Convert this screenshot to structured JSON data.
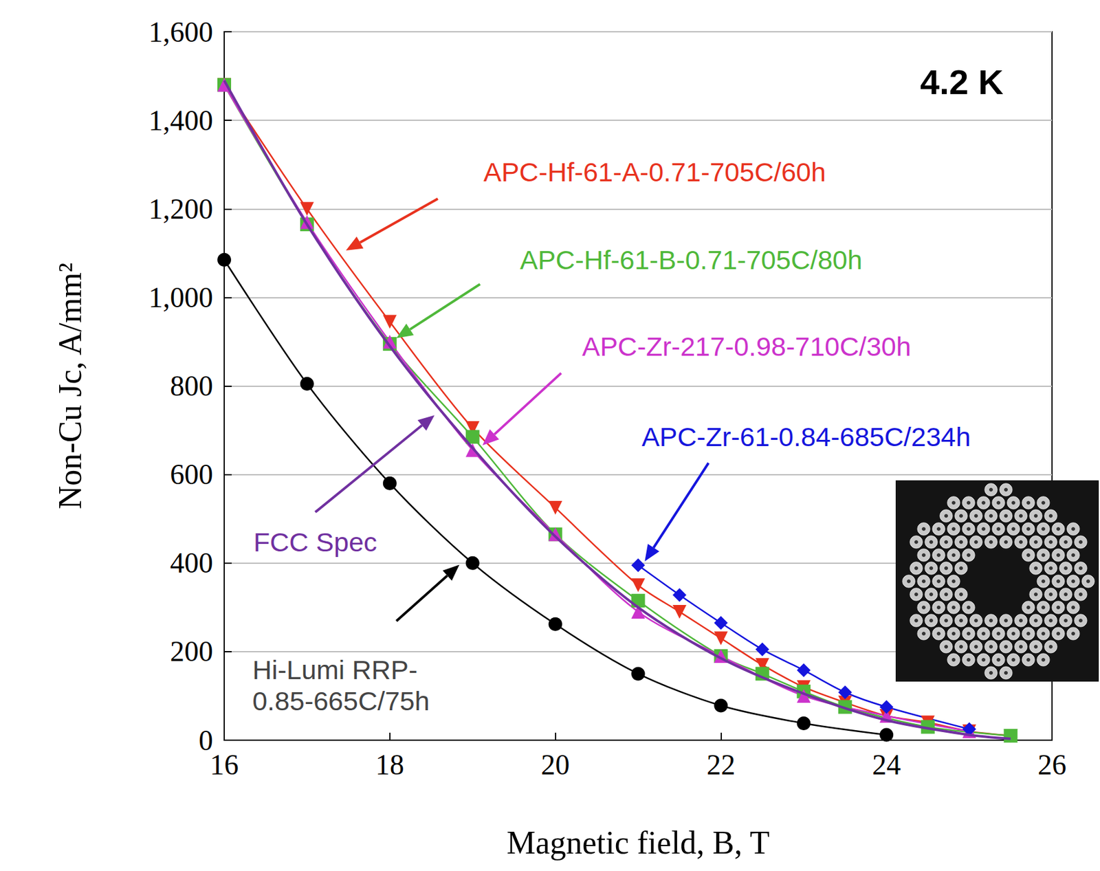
{
  "chart_data": {
    "type": "line",
    "title": "4.2 K",
    "x_label": "Magnetic field, B, T",
    "y_label": "Non-Cu Jc, A/mm²",
    "xlim": [
      16,
      26
    ],
    "xticks": [
      16,
      18,
      20,
      22,
      24,
      26
    ],
    "ylim": [
      0,
      1600
    ],
    "yticks": [
      0,
      200,
      400,
      600,
      800,
      1000,
      1200,
      1400,
      1600
    ],
    "grid": true,
    "series": [
      {
        "name": "APC-Hf-61-A-0.71-705C/60h",
        "color": "#e8321e",
        "marker": "triangle-down",
        "x": [
          16,
          17,
          18,
          19,
          20,
          21,
          21.5,
          22,
          22.5,
          23,
          23.5,
          24,
          24.5,
          25,
          25.5
        ],
        "values": [
          1480,
          1200,
          945,
          705,
          525,
          350,
          290,
          230,
          170,
          120,
          85,
          55,
          40,
          20,
          10
        ]
      },
      {
        "name": "APC-Hf-61-B-0.71-705C/80h",
        "color": "#4fb83a",
        "marker": "square",
        "x": [
          16,
          17,
          18,
          19,
          20,
          21,
          22,
          22.5,
          23,
          23.5,
          24.5,
          25.5
        ],
        "values": [
          1480,
          1165,
          895,
          685,
          465,
          315,
          190,
          150,
          110,
          75,
          30,
          10
        ]
      },
      {
        "name": "APC-Zr-217-0.98-710C/30h",
        "color": "#cc33cc",
        "marker": "triangle",
        "x": [
          16,
          17,
          18,
          19,
          20,
          21,
          22,
          23,
          24,
          25
        ],
        "values": [
          1480,
          1170,
          900,
          655,
          465,
          290,
          190,
          100,
          55,
          20
        ]
      },
      {
        "name": "APC-Zr-61-0.84-685C/234h",
        "color": "#1515dd",
        "marker": "diamond",
        "x": [
          21,
          21.5,
          22,
          22.5,
          23,
          23.5,
          24,
          25
        ],
        "values": [
          395,
          328,
          265,
          205,
          158,
          108,
          75,
          25
        ]
      },
      {
        "name": "Hi-Lumi RRP-0.85-665C/75h",
        "color": "#000000",
        "marker": "circle",
        "x": [
          16,
          17,
          18,
          19,
          20,
          21,
          22,
          23,
          24
        ],
        "values": [
          1085,
          805,
          580,
          400,
          262,
          150,
          78,
          38,
          12
        ]
      },
      {
        "name": "FCC Spec",
        "color": "#7030a0",
        "marker": "none",
        "x": [
          16,
          17,
          18,
          19,
          20,
          21,
          22,
          23,
          24,
          25,
          25.5
        ],
        "values": [
          1490,
          1165,
          890,
          660,
          460,
          300,
          185,
          105,
          45,
          12,
          3
        ]
      }
    ]
  }
}
